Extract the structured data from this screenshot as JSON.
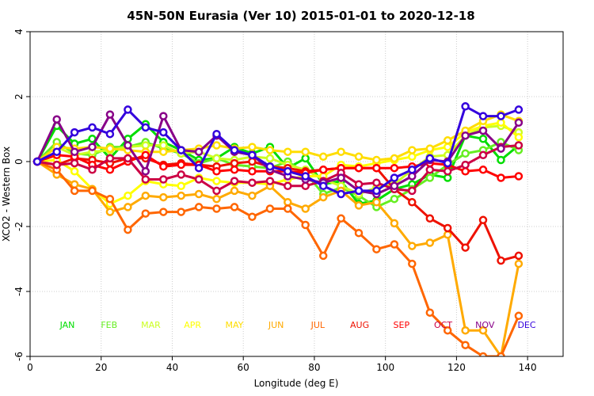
{
  "chart_data": {
    "type": "line",
    "title": "45N-50N Eurasia (Ver 10)   2015-01-01 to 2020-12-18",
    "xlabel": "Longitude (deg E)",
    "ylabel": "XCO2 - Western Box",
    "xlim": [
      0,
      150
    ],
    "ylim": [
      -6,
      4
    ],
    "x_ticks": [
      0,
      20,
      40,
      60,
      80,
      100,
      120,
      140
    ],
    "y_ticks": [
      -6,
      -4,
      -2,
      0,
      2,
      4
    ],
    "x_tick_labels": [
      "0",
      "20",
      "40",
      "60",
      "80",
      "100",
      "120",
      "140"
    ],
    "y_tick_labels": [
      "-6",
      "-4",
      "-2",
      "0",
      "2",
      "4"
    ],
    "grid": true,
    "legend_placement": "bottom inside plot",
    "x": [
      2,
      7.5,
      12.5,
      17.5,
      22.5,
      27.5,
      32.5,
      37.5,
      42.5,
      47.5,
      52.5,
      57.5,
      62.5,
      67.5,
      72.5,
      77.5,
      82.5,
      87.5,
      92.5,
      97.5,
      102.5,
      107.5,
      112.5,
      117.5,
      122.5,
      127.5,
      132.5,
      137.5
    ],
    "series": [
      {
        "name": "JAN",
        "color": "#00dd00",
        "values": [
          0,
          1.1,
          0.55,
          0.7,
          0.1,
          0.7,
          1.15,
          0.6,
          0.35,
          0.05,
          0.1,
          0.45,
          0.25,
          0.45,
          -0.2,
          0.1,
          -0.7,
          -0.6,
          -1.3,
          -1.2,
          -0.85,
          -0.7,
          -0.4,
          -0.5,
          0.8,
          0.7,
          0.05,
          0.5
        ]
      },
      {
        "name": "FEB",
        "color": "#66ee22",
        "values": [
          0,
          0.6,
          0.25,
          0.2,
          0.45,
          0.45,
          0.6,
          0.4,
          0.25,
          -0.05,
          0.1,
          -0.1,
          -0.15,
          -0.2,
          0,
          -0.35,
          -1.0,
          -0.8,
          -1.05,
          -1.4,
          -1.15,
          -0.85,
          -0.5,
          -0.1,
          0.25,
          0.35,
          0.6,
          0.35
        ]
      },
      {
        "name": "MAR",
        "color": "#ccff22",
        "values": [
          0,
          0.45,
          0.2,
          0.3,
          0.35,
          0.45,
          0.5,
          0.5,
          0.25,
          0.3,
          0.1,
          0.05,
          0.15,
          0.1,
          -0.1,
          -0.25,
          -0.55,
          -0.75,
          -1.0,
          -0.8,
          -0.7,
          -0.25,
          0.15,
          0.2,
          0.8,
          1.05,
          1.1,
          0.9
        ]
      },
      {
        "name": "APR",
        "color": "#ffff00",
        "values": [
          0,
          0.05,
          -0.3,
          -0.85,
          -1.3,
          -1.05,
          -0.6,
          -0.7,
          -0.75,
          -0.5,
          -0.6,
          -0.65,
          -0.65,
          -0.7,
          -0.55,
          -0.45,
          -0.45,
          -0.1,
          -0.15,
          -0.05,
          0.05,
          0.15,
          0.35,
          0.45,
          0.9,
          1.1,
          1.2,
          0.75
        ]
      },
      {
        "name": "MAY",
        "color": "#ffdd00",
        "values": [
          0,
          0.45,
          0.4,
          0.45,
          0.4,
          0.35,
          0.3,
          0.3,
          0.35,
          0.4,
          0.5,
          0.4,
          0.45,
          0.35,
          0.3,
          0.3,
          0.15,
          0.3,
          0.15,
          0.05,
          0.1,
          0.35,
          0.4,
          0.65,
          0.95,
          1.25,
          1.45,
          1.25
        ]
      },
      {
        "name": "JUN",
        "color": "#ffaa00",
        "values": [
          0,
          -0.4,
          -0.7,
          -0.85,
          -1.55,
          -1.4,
          -1.05,
          -1.1,
          -1.05,
          -1.0,
          -1.15,
          -0.9,
          -1.05,
          -0.75,
          -1.25,
          -1.45,
          -1.1,
          -0.9,
          -1.35,
          -1.25,
          -1.9,
          -2.6,
          -2.5,
          -2.25,
          -5.2,
          -5.2,
          -6.0,
          -3.15
        ]
      },
      {
        "name": "JUL",
        "color": "#ff6600",
        "values": [
          0,
          -0.25,
          -0.9,
          -0.9,
          -1.15,
          -2.1,
          -1.6,
          -1.55,
          -1.55,
          -1.4,
          -1.45,
          -1.4,
          -1.7,
          -1.45,
          -1.45,
          -1.95,
          -2.9,
          -1.75,
          -2.2,
          -2.7,
          -2.55,
          -3.15,
          -4.65,
          -5.2,
          -5.65,
          -6.0,
          -6.0,
          -4.75
        ]
      },
      {
        "name": "AUG",
        "color": "#ee1100",
        "values": [
          0,
          -0.1,
          0.1,
          0.05,
          -0.05,
          0.1,
          0.1,
          -0.1,
          -0.05,
          -0.1,
          -0.15,
          -0.05,
          0,
          -0.15,
          -0.2,
          -0.3,
          -0.25,
          -0.2,
          -0.2,
          -0.2,
          -0.85,
          -1.25,
          -1.75,
          -2.05,
          -2.65,
          -1.8,
          -3.05,
          -2.9
        ]
      },
      {
        "name": "SEP",
        "color": "#ff0000",
        "values": [
          0,
          0.2,
          0.15,
          -0.1,
          -0.25,
          0,
          0.2,
          -0.15,
          -0.1,
          -0.1,
          -0.3,
          -0.25,
          -0.3,
          -0.3,
          -0.3,
          -0.35,
          -0.25,
          -0.2,
          -0.2,
          -0.2,
          -0.2,
          -0.15,
          -0.05,
          -0.1,
          -0.3,
          -0.25,
          -0.5,
          -0.45
        ]
      },
      {
        "name": "OCT",
        "color": "#cc0044",
        "values": [
          0,
          -0.1,
          -0.05,
          -0.25,
          0.1,
          0.1,
          -0.55,
          -0.55,
          -0.4,
          -0.55,
          -0.9,
          -0.6,
          -0.65,
          -0.6,
          -0.75,
          -0.75,
          -0.6,
          -0.35,
          -0.7,
          -0.65,
          -0.85,
          -0.9,
          -0.25,
          -0.3,
          -0.1,
          0.2,
          0.45,
          0.5
        ]
      },
      {
        "name": "NOV",
        "color": "#880088",
        "values": [
          0,
          1.3,
          0.3,
          0.45,
          1.45,
          0.5,
          -0.3,
          1.4,
          0.35,
          0.3,
          0.8,
          0.3,
          0.2,
          -0.25,
          -0.45,
          -0.55,
          -0.65,
          -0.5,
          -0.9,
          -1.0,
          -0.75,
          -0.45,
          0.05,
          0.0,
          0.8,
          0.95,
          0.4,
          1.2
        ]
      },
      {
        "name": "DEC",
        "color": "#3300dd",
        "values": [
          0,
          0.3,
          0.9,
          1.05,
          0.85,
          1.6,
          1.05,
          0.9,
          0.35,
          -0.2,
          0.85,
          0.35,
          0.2,
          -0.15,
          -0.3,
          -0.45,
          -0.75,
          -1.0,
          -0.9,
          -0.9,
          -0.5,
          -0.25,
          0.1,
          -0.05,
          1.7,
          1.4,
          1.4,
          1.6
        ]
      }
    ],
    "legend": [
      "JAN",
      "FEB",
      "MAR",
      "APR",
      "MAY",
      "JUN",
      "JUL",
      "AUG",
      "SEP",
      "OCT",
      "NOV",
      "DEC"
    ]
  }
}
